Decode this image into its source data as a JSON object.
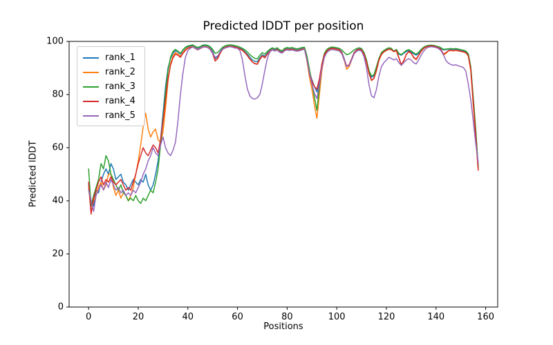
{
  "chart_data": {
    "type": "line",
    "title": "Predicted lDDT per position",
    "xlabel": "Positions",
    "ylabel": "Predicted lDDT",
    "x_ticks": [
      0,
      20,
      40,
      60,
      80,
      100,
      120,
      140,
      160
    ],
    "y_ticks": [
      0,
      20,
      40,
      60,
      80,
      100
    ],
    "xlim": [
      -7.85,
      164.85
    ],
    "ylim": [
      0,
      100
    ],
    "grid": false,
    "legend_position": "upper left",
    "x_start": 0,
    "x_step": 1,
    "series": [
      {
        "name": "rank_1",
        "color": "#1f77b4",
        "values": [
          46,
          40,
          38,
          44,
          43,
          47,
          50,
          52,
          50,
          54,
          52,
          48,
          49,
          50,
          47,
          46,
          44,
          46,
          48,
          47,
          46,
          48,
          47,
          50,
          46,
          44,
          46,
          50,
          55,
          63,
          73,
          83,
          90,
          93.5,
          95.5,
          96.5,
          96,
          95.2,
          96.6,
          97.6,
          98,
          98.2,
          98.4,
          97.8,
          97.3,
          97.8,
          98.3,
          98.4,
          98.2,
          97.6,
          96.2,
          93.5,
          94.2,
          96,
          97.4,
          98,
          98.3,
          98.4,
          98.3,
          98.1,
          97.9,
          97.5,
          97,
          96.2,
          95.2,
          94,
          93,
          92.5,
          92.3,
          93.8,
          95,
          94.4,
          95.6,
          96.6,
          97.2,
          96.8,
          97.2,
          96.4,
          96.1,
          97,
          97.3,
          97.1,
          97.3,
          97,
          96.8,
          97,
          97.3,
          97.4,
          93.5,
          88.5,
          85.5,
          83,
          81,
          85,
          91,
          95,
          96.5,
          97.2,
          97.5,
          97.4,
          97.2,
          97,
          96,
          93.5,
          90.5,
          91.2,
          93.5,
          95.8,
          96.8,
          97.2,
          96.9,
          95.4,
          92.5,
          88.5,
          86.5,
          87,
          90,
          93.2,
          95.4,
          96.2,
          96.8,
          97.2,
          97,
          96.4,
          96.8,
          95.2,
          94.8,
          95.5,
          96.2,
          96.5,
          96,
          95.3,
          94.8,
          95.5,
          96.6,
          97.5,
          98,
          98.2,
          98.3,
          98.2,
          98,
          97.8,
          97.4,
          96.8,
          96.9,
          97,
          97.1,
          97,
          97.1,
          96.9,
          96.7,
          96.5,
          96.2,
          95.2,
          90,
          78,
          66,
          53
        ]
      },
      {
        "name": "rank_2",
        "color": "#ff7f0e",
        "values": [
          45,
          36,
          40,
          42,
          45,
          47,
          44,
          46,
          50,
          50,
          45,
          42,
          44,
          41,
          43,
          42,
          40,
          42,
          45,
          50,
          55,
          61,
          68,
          73,
          67,
          64,
          66,
          67,
          63,
          62,
          66,
          75,
          85,
          91.5,
          94.5,
          95.8,
          95.3,
          94.3,
          95.8,
          97,
          97.6,
          97.9,
          98.1,
          97.5,
          97,
          97.5,
          98,
          98.1,
          97.9,
          97.2,
          95.6,
          92.7,
          93.6,
          95.6,
          97.1,
          97.8,
          98.1,
          98.2,
          98.1,
          97.9,
          97.7,
          97.2,
          96.7,
          95.8,
          94.7,
          93.4,
          92.3,
          91.7,
          91.5,
          93.3,
          94.6,
          93.9,
          95.2,
          96.3,
          97,
          96.5,
          97,
          96.1,
          95.8,
          96.8,
          97.1,
          96.9,
          97.1,
          96.8,
          96.5,
          96.8,
          97.1,
          97.2,
          92.5,
          86.5,
          82,
          76,
          71,
          80,
          89,
          94.3,
          96.2,
          97,
          97.3,
          97.2,
          97,
          96.8,
          95.6,
          92.8,
          89.5,
          90.5,
          93,
          95.5,
          96.6,
          97,
          96.7,
          95.1,
          92,
          87.8,
          85.3,
          86,
          89,
          92.8,
          95,
          96,
          96.6,
          97,
          96.8,
          96.1,
          96.5,
          93.8,
          90.9,
          92.5,
          95,
          96.1,
          95.5,
          93.8,
          93.1,
          94.7,
          96.2,
          97.3,
          97.9,
          98.1,
          98.2,
          98.1,
          97.9,
          97.5,
          96.8,
          94.8,
          95.5,
          96.4,
          96.6,
          96.4,
          96.6,
          96.4,
          96.2,
          96,
          95.7,
          94.5,
          89,
          76,
          63,
          51.5
        ]
      },
      {
        "name": "rank_3",
        "color": "#2ca02c",
        "values": [
          52,
          38,
          42,
          45,
          48,
          54,
          52,
          57,
          55,
          50,
          48,
          46,
          44,
          46,
          43,
          42,
          40,
          41,
          40,
          42,
          40,
          39,
          41,
          40,
          42,
          44,
          43,
          47,
          52,
          61,
          71,
          81,
          89,
          94,
          96.2,
          97,
          96.3,
          95.5,
          96.8,
          97.8,
          98.3,
          98.5,
          98.7,
          98.1,
          97.7,
          98.1,
          98.6,
          98.7,
          98.5,
          98,
          97,
          95.5,
          95.8,
          96.8,
          97.8,
          98.3,
          98.6,
          98.7,
          98.6,
          98.4,
          98.2,
          97.8,
          97.4,
          96.8,
          96,
          95,
          94.2,
          93.6,
          93.4,
          94.8,
          95.8,
          95.2,
          96.2,
          97,
          97.6,
          97.2,
          97.6,
          96.8,
          96.5,
          97.4,
          97.7,
          97.5,
          97.7,
          97.4,
          97.2,
          97.4,
          97.7,
          97.8,
          94.5,
          89.5,
          84.5,
          79,
          74,
          83,
          91.5,
          95.5,
          97,
          97.6,
          97.9,
          97.8,
          97.6,
          97.4,
          96.8,
          95.8,
          95,
          95.3,
          96,
          96.8,
          97.3,
          97.6,
          97.3,
          95.8,
          93,
          89,
          87,
          87.5,
          90.5,
          93.6,
          95.8,
          96.6,
          97.2,
          97.6,
          97.4,
          96.2,
          97,
          95.5,
          95,
          95.8,
          96.6,
          96.9,
          96.4,
          95.7,
          95.2,
          95.9,
          97,
          97.8,
          98.3,
          98.5,
          98.6,
          98.5,
          98.3,
          98,
          97.6,
          97,
          97.1,
          97.2,
          97.3,
          97.2,
          97.3,
          97.1,
          96.9,
          96.7,
          96.4,
          95.4,
          90.5,
          79,
          67,
          52.5
        ]
      },
      {
        "name": "rank_4",
        "color": "#d62728",
        "values": [
          47,
          35,
          41,
          44,
          47,
          49,
          46,
          48,
          47,
          49,
          47,
          46,
          47,
          48,
          46,
          44,
          45,
          44,
          47,
          50,
          54,
          57,
          60,
          58,
          57,
          59,
          61,
          60,
          58,
          63,
          70,
          78,
          86,
          91,
          93.8,
          95.2,
          94.8,
          94,
          95.5,
          96.6,
          97.4,
          97.7,
          97.9,
          97.3,
          96.8,
          97.3,
          97.8,
          97.9,
          97.7,
          97,
          95.4,
          92.6,
          93.5,
          95.5,
          97,
          97.7,
          98,
          98.1,
          98,
          97.8,
          97.6,
          97.1,
          96.6,
          95.7,
          94.6,
          93.3,
          92.2,
          91.6,
          91.4,
          93.2,
          94.5,
          93.8,
          95.1,
          96.2,
          96.9,
          96.4,
          96.9,
          96,
          95.7,
          96.7,
          97,
          96.8,
          97,
          96.7,
          96.4,
          96.7,
          97,
          97.1,
          93,
          88,
          85,
          83,
          82,
          86,
          91.5,
          95,
          96.4,
          97.1,
          97.4,
          97.3,
          97.1,
          96.9,
          95.8,
          93.2,
          90.7,
          91.2,
          93.4,
          95.7,
          96.7,
          97.1,
          96.8,
          95.2,
          92.2,
          88,
          85.3,
          86.2,
          89.2,
          93,
          95.2,
          96.1,
          96.7,
          97.1,
          96.9,
          96.2,
          96.6,
          94,
          91.2,
          92.8,
          95.1,
          96.2,
          95.6,
          94,
          93.3,
          94.8,
          96.3,
          97.4,
          98,
          98.2,
          98.3,
          98.2,
          98,
          97.6,
          97,
          95.2,
          95.8,
          96.5,
          96.7,
          96.5,
          96.7,
          96.5,
          96.3,
          96.1,
          95.8,
          94.6,
          89.5,
          77,
          64.5,
          51.5
        ]
      },
      {
        "name": "rank_5",
        "color": "#9467bd",
        "values": [
          44,
          40,
          36,
          42,
          44,
          46,
          44,
          47,
          45,
          48,
          46,
          44,
          45,
          43,
          44,
          42,
          43,
          42,
          44,
          43,
          45,
          47,
          50,
          52,
          55,
          57,
          60,
          58,
          57,
          61,
          64,
          60,
          58,
          57,
          59,
          62,
          70,
          80,
          88,
          94,
          96.5,
          97.4,
          97.9,
          97.4,
          96.9,
          97.4,
          97.9,
          97.9,
          97.7,
          96.9,
          95.4,
          94,
          94.5,
          96,
          97,
          97.5,
          97.8,
          98,
          97.8,
          97.5,
          97.4,
          96.5,
          93,
          87,
          82,
          79.5,
          78.5,
          78.3,
          78.8,
          80,
          84,
          89,
          93.5,
          96,
          96.8,
          96.4,
          96.7,
          95.9,
          95.6,
          96.5,
          96.8,
          96.6,
          96.8,
          96.5,
          96.3,
          96.5,
          96.8,
          97,
          93,
          88,
          84,
          80.5,
          78.5,
          84,
          90,
          94,
          95.8,
          96.6,
          96.9,
          96.8,
          96.6,
          96.4,
          95.4,
          93,
          90.5,
          91,
          93,
          95.3,
          96.3,
          96.7,
          96.3,
          94.2,
          90,
          83.5,
          79.5,
          78.8,
          82,
          87,
          90.5,
          92,
          93,
          94,
          93.6,
          93,
          93.5,
          92,
          91,
          92,
          93,
          93.5,
          93,
          92,
          91.5,
          93,
          94.8,
          96.3,
          97.4,
          97.8,
          98,
          97.9,
          97.7,
          97.3,
          96.5,
          95,
          92.8,
          91.8,
          91.3,
          91,
          91.2,
          90.8,
          90.5,
          90.2,
          88.8,
          84,
          78,
          70,
          61.5,
          54.5
        ]
      }
    ]
  }
}
